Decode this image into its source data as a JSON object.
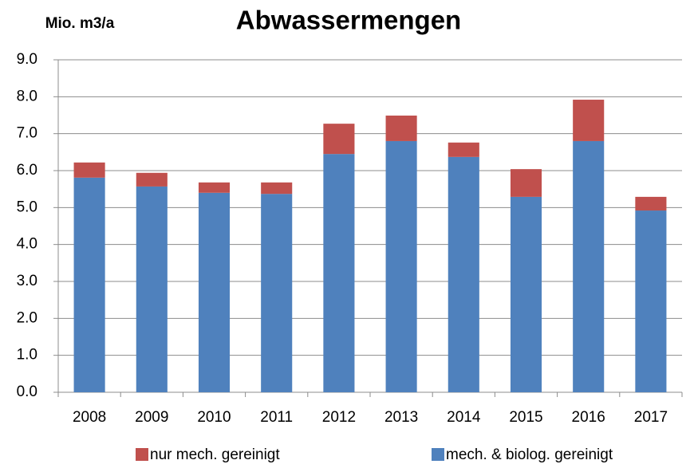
{
  "chart_data": {
    "type": "bar",
    "stacked": true,
    "title": "Abwassermengen",
    "y_label": "Mio. m3/a",
    "categories": [
      "2008",
      "2009",
      "2010",
      "2011",
      "2012",
      "2013",
      "2014",
      "2015",
      "2016",
      "2017"
    ],
    "series": [
      {
        "name": "mech. & biolog. gereinigt",
        "color": "#4f81bd",
        "values": [
          5.81,
          5.57,
          5.4,
          5.37,
          6.45,
          6.8,
          6.37,
          5.29,
          6.8,
          4.92
        ]
      },
      {
        "name": "nur mech. gereinigt",
        "color": "#c0504d",
        "values": [
          0.41,
          0.37,
          0.28,
          0.31,
          0.82,
          0.69,
          0.39,
          0.75,
          1.12,
          0.37
        ]
      }
    ],
    "ylim": [
      0,
      9
    ],
    "yticks": [
      {
        "value": 0,
        "label": "0.0"
      },
      {
        "value": 1,
        "label": "1.0"
      },
      {
        "value": 2,
        "label": "2.0"
      },
      {
        "value": 3,
        "label": "3.0"
      },
      {
        "value": 4,
        "label": "4.0"
      },
      {
        "value": 5,
        "label": "5.0"
      },
      {
        "value": 6,
        "label": "6.0"
      },
      {
        "value": 7,
        "label": "7.0"
      },
      {
        "value": 8,
        "label": "8.0"
      },
      {
        "value": 9,
        "label": "9.0"
      }
    ],
    "grid": true,
    "legend": "bottom"
  }
}
